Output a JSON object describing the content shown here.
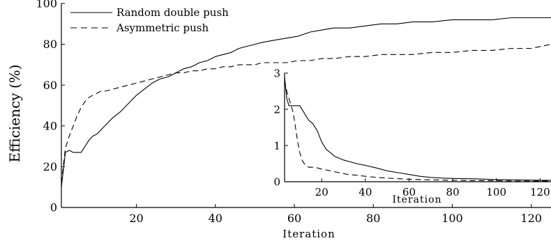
{
  "chart_data": [
    {
      "type": "line",
      "xlabel": "Iteration",
      "ylabel": "Efficiency (%)",
      "xlim": [
        1,
        125
      ],
      "ylim": [
        0,
        100
      ],
      "xticks": [
        20,
        40,
        60,
        80,
        100,
        120
      ],
      "yticks": [
        0,
        20,
        40,
        60,
        80,
        100
      ],
      "grid": false,
      "legend": "top-left",
      "series": [
        {
          "name": "Random double push",
          "style": "solid",
          "color": "#000000",
          "x": [
            1,
            2,
            3,
            4,
            5,
            6,
            7,
            8,
            9,
            10,
            11,
            12,
            14,
            16,
            18,
            20,
            22,
            24,
            26,
            28,
            30,
            32,
            34,
            36,
            38,
            40,
            42,
            44,
            46,
            48,
            50,
            52,
            55,
            58,
            61,
            64,
            67,
            70,
            74,
            78,
            82,
            86,
            90,
            95,
            100,
            105,
            110,
            115,
            120,
            125
          ],
          "values": [
            10,
            27,
            28,
            27,
            27,
            27,
            30,
            33,
            35,
            36,
            38,
            40,
            44,
            47,
            51,
            55,
            58,
            61,
            63,
            64,
            66,
            68,
            69,
            71,
            72,
            74,
            75,
            76,
            78,
            79,
            80,
            81,
            82,
            83,
            84,
            86,
            87,
            88,
            88,
            89,
            90,
            90,
            91,
            91,
            92,
            92,
            92,
            93,
            93,
            93
          ]
        },
        {
          "name": "Asymmetric push",
          "style": "dashed",
          "color": "#000000",
          "x": [
            1,
            2,
            3,
            4,
            5,
            6,
            7,
            8,
            9,
            10,
            11,
            12,
            14,
            16,
            18,
            20,
            22,
            24,
            26,
            28,
            30,
            32,
            34,
            36,
            38,
            40,
            42,
            44,
            46,
            48,
            50,
            52,
            55,
            58,
            61,
            64,
            67,
            70,
            74,
            78,
            82,
            86,
            90,
            95,
            100,
            105,
            110,
            115,
            120,
            125
          ],
          "values": [
            12,
            29,
            35,
            40,
            45,
            49,
            52,
            54,
            55,
            56,
            57,
            57,
            58,
            59,
            60,
            61,
            62,
            63,
            64,
            65,
            66,
            66,
            67,
            67,
            68,
            68,
            69,
            69,
            70,
            70,
            70,
            71,
            71,
            71,
            72,
            72,
            73,
            73,
            74,
            74,
            75,
            75,
            75,
            76,
            76,
            77,
            77,
            78,
            78,
            80
          ]
        }
      ]
    },
    {
      "type": "line",
      "inset": true,
      "xlabel": "Iteration",
      "ylabel": "",
      "xlim": [
        3,
        125
      ],
      "ylim": [
        0,
        3
      ],
      "xticks": [
        20,
        40,
        60,
        80,
        100,
        120
      ],
      "yticks": [
        0,
        1,
        2,
        3
      ],
      "grid": false,
      "series": [
        {
          "style": "solid",
          "color": "#000000",
          "x": [
            3,
            4,
            5,
            6,
            8,
            10,
            12,
            14,
            16,
            18,
            20,
            22,
            24,
            26,
            28,
            30,
            33,
            36,
            40,
            45,
            50,
            55,
            60,
            65,
            70,
            75,
            80,
            90,
            100,
            110,
            120,
            125
          ],
          "values": [
            2.9,
            2.3,
            2.1,
            2.1,
            2.1,
            2.1,
            1.9,
            1.7,
            1.6,
            1.4,
            1.1,
            0.9,
            0.8,
            0.7,
            0.65,
            0.6,
            0.55,
            0.5,
            0.45,
            0.38,
            0.3,
            0.25,
            0.2,
            0.15,
            0.12,
            0.1,
            0.09,
            0.08,
            0.06,
            0.05,
            0.04,
            0.04
          ]
        },
        {
          "style": "dashed",
          "color": "#000000",
          "x": [
            3,
            4,
            5,
            6,
            7,
            8,
            9,
            10,
            11,
            12,
            13,
            14,
            16,
            18,
            20,
            24,
            28,
            32,
            36,
            40,
            45,
            50,
            60,
            70,
            80,
            90,
            100,
            110,
            120,
            125
          ],
          "values": [
            2.8,
            2.5,
            2.3,
            2.1,
            1.9,
            1.5,
            1.1,
            0.8,
            0.6,
            0.5,
            0.45,
            0.4,
            0.4,
            0.38,
            0.35,
            0.3,
            0.25,
            0.2,
            0.18,
            0.15,
            0.12,
            0.1,
            0.07,
            0.05,
            0.04,
            0.03,
            0.03,
            0.02,
            0.02,
            0.02
          ]
        }
      ]
    }
  ]
}
